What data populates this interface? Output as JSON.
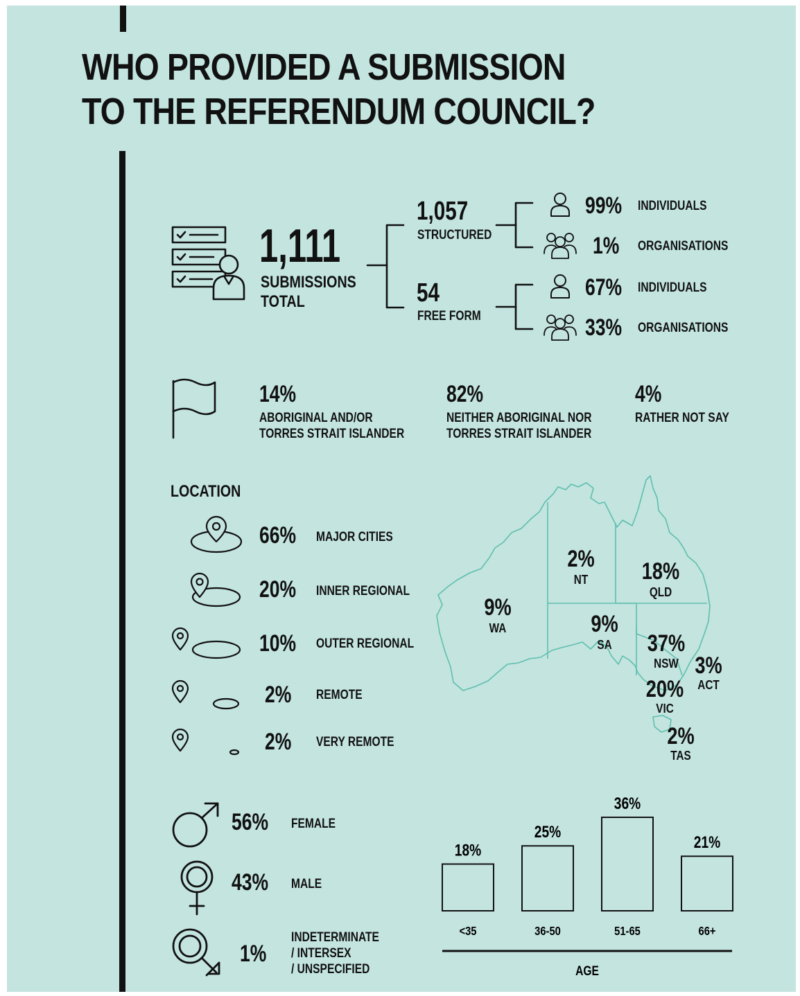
{
  "title_line1": "WHO PROVIDED A SUBMISSION",
  "title_line2": "TO THE REFERENDUM COUNCIL?",
  "total": {
    "value": "1,111",
    "label_line1": "SUBMISSIONS",
    "label_line2": "TOTAL"
  },
  "structured": {
    "value": "1,057",
    "label": "STRUCTURED",
    "individuals": {
      "pct": "99%",
      "label": "INDIVIDUALS"
    },
    "organisations": {
      "pct": "1%",
      "label": "ORGANISATIONS"
    }
  },
  "free_form": {
    "value": "54",
    "label": "FREE FORM",
    "individuals": {
      "pct": "67%",
      "label": "INDIVIDUALS"
    },
    "organisations": {
      "pct": "33%",
      "label": "ORGANISATIONS"
    }
  },
  "identity": [
    {
      "pct": "14%",
      "line1": "ABORIGINAL AND/OR",
      "line2": "TORRES STRAIT ISLANDER"
    },
    {
      "pct": "82%",
      "line1": "NEITHER ABORIGINAL NOR",
      "line2": "TORRES STRAIT ISLANDER"
    },
    {
      "pct": "4%",
      "line1": "RATHER NOT SAY",
      "line2": ""
    }
  ],
  "location": {
    "heading": "LOCATION",
    "items": [
      {
        "pct": "66%",
        "label": "MAJOR CITIES"
      },
      {
        "pct": "20%",
        "label": "INNER REGIONAL"
      },
      {
        "pct": "10%",
        "label": "OUTER REGIONAL"
      },
      {
        "pct": "2%",
        "label": "REMOTE"
      },
      {
        "pct": "2%",
        "label": "VERY REMOTE"
      }
    ]
  },
  "states": {
    "wa": {
      "pct": "9%",
      "name": "WA"
    },
    "nt": {
      "pct": "2%",
      "name": "NT"
    },
    "qld": {
      "pct": "18%",
      "name": "QLD"
    },
    "sa": {
      "pct": "9%",
      "name": "SA"
    },
    "nsw": {
      "pct": "37%",
      "name": "NSW"
    },
    "act": {
      "pct": "3%",
      "name": "ACT"
    },
    "vic": {
      "pct": "20%",
      "name": "VIC"
    },
    "tas": {
      "pct": "2%",
      "name": "TAS"
    }
  },
  "gender": [
    {
      "pct": "56%",
      "line1": "FEMALE",
      "line2": "",
      "line3": ""
    },
    {
      "pct": "43%",
      "line1": "MALE",
      "line2": "",
      "line3": ""
    },
    {
      "pct": "1%",
      "line1": "INDETERMINATE",
      "line2": "/ INTERSEX",
      "line3": "/ UNSPECIFIED"
    }
  ],
  "colors": {
    "background": "#c3e4df",
    "map_outline": "#5fbfae",
    "ink": "#111111"
  },
  "icons": [
    "checklist-person-icon",
    "person-icon",
    "group-icon",
    "flag-icon",
    "map-pin-icon",
    "male-symbol-icon",
    "female-symbol-icon",
    "intersex-symbol-icon"
  ],
  "chart_data": {
    "type": "bar",
    "categories": [
      "<35",
      "36-50",
      "51-65",
      "66+"
    ],
    "values": [
      18,
      25,
      36,
      21
    ],
    "value_labels": [
      "18%",
      "25%",
      "36%",
      "21%"
    ],
    "xlabel": "AGE",
    "ylabel": "",
    "ylim": [
      0,
      36
    ]
  }
}
